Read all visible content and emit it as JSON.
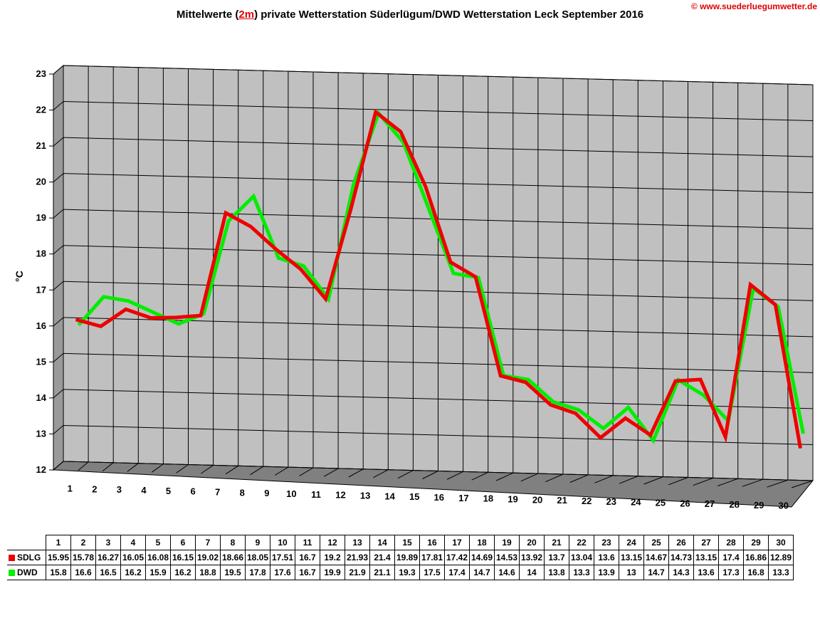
{
  "title": {
    "prefix": "Mittelwerte (",
    "highlight": "2m",
    "suffix": ") private Wetterstation Süderlügum/DWD Wetterstation Leck September 2016"
  },
  "credit": "© www.suederluegumwetter.de",
  "chart_data": {
    "type": "line",
    "title": "Mittelwerte (2m) private Wetterstation Süderlügum/DWD Wetterstation Leck September 2016",
    "xlabel": "",
    "ylabel": "°C",
    "ylim": [
      12,
      23
    ],
    "yticks": [
      12,
      13,
      14,
      15,
      16,
      17,
      18,
      19,
      20,
      21,
      22,
      23
    ],
    "categories": [
      "1",
      "2",
      "3",
      "4",
      "5",
      "6",
      "7",
      "8",
      "9",
      "10",
      "11",
      "12",
      "13",
      "14",
      "15",
      "16",
      "17",
      "18",
      "19",
      "20",
      "21",
      "22",
      "23",
      "24",
      "25",
      "26",
      "27",
      "28",
      "29",
      "30"
    ],
    "grid": true,
    "legend": "table-below",
    "series": [
      {
        "name": "SDLG",
        "color": "#ee0000",
        "values": [
          15.95,
          15.78,
          16.27,
          16.05,
          16.08,
          16.15,
          19.02,
          18.66,
          18.05,
          17.51,
          16.7,
          19.2,
          21.93,
          21.4,
          19.89,
          17.81,
          17.42,
          14.69,
          14.53,
          13.92,
          13.7,
          13.04,
          13.6,
          13.15,
          14.67,
          14.73,
          13.15,
          17.4,
          16.86,
          12.89
        ],
        "labels": [
          "15.95",
          "15.78",
          "16.27",
          "16.05",
          "16.08",
          "16.15",
          "19.02",
          "18.66",
          "18.05",
          "17.51",
          "16.7",
          "19.2",
          "21.93",
          "21.4",
          "19.89",
          "17.81",
          "17.42",
          "14.69",
          "14.53",
          "13.92",
          "13.7",
          "13.04",
          "13.6",
          "13.15",
          "14.67",
          "14.73",
          "13.15",
          "17.4",
          "16.86",
          "12.89"
        ]
      },
      {
        "name": "DWD",
        "color": "#00ee00",
        "values": [
          15.8,
          16.6,
          16.5,
          16.2,
          15.9,
          16.2,
          18.8,
          19.5,
          17.8,
          17.6,
          16.7,
          19.9,
          21.9,
          21.1,
          19.3,
          17.5,
          17.4,
          14.7,
          14.6,
          14,
          13.8,
          13.3,
          13.9,
          13,
          14.7,
          14.3,
          13.6,
          17.3,
          16.8,
          13.3
        ],
        "labels": [
          "15.8",
          "16.6",
          "16.5",
          "16.2",
          "15.9",
          "16.2",
          "18.8",
          "19.5",
          "17.8",
          "17.6",
          "16.7",
          "19.9",
          "21.9",
          "21.1",
          "19.3",
          "17.5",
          "17.4",
          "14.7",
          "14.6",
          "14",
          "13.8",
          "13.3",
          "13.9",
          "13",
          "14.7",
          "14.3",
          "13.6",
          "17.3",
          "16.8",
          "13.3"
        ]
      }
    ]
  }
}
